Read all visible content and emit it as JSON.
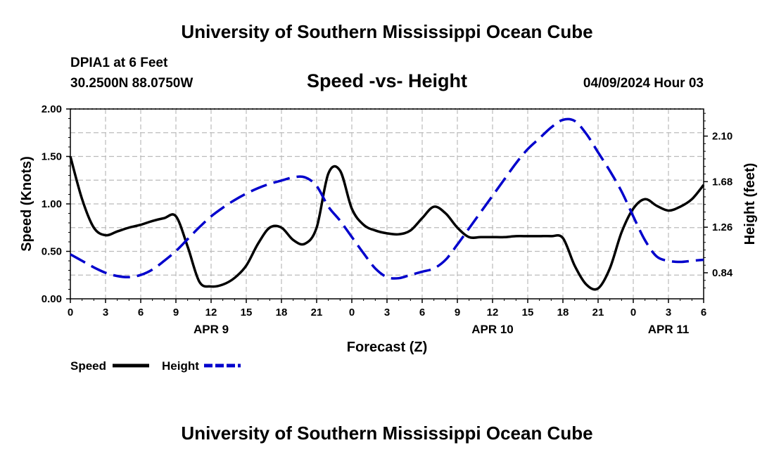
{
  "page": {
    "title_top": "University of Southern Mississippi Ocean Cube",
    "title_bottom": "University of Southern Mississippi Ocean Cube",
    "station": "DPIA1 at 6 Feet",
    "coords": "30.2500N  88.0750W",
    "timestamp": "04/09/2024 Hour 03"
  },
  "chart_data": {
    "type": "line",
    "title": "Speed -vs- Height",
    "xlabel": "Forecast (Z)",
    "ylabel_left": "Speed (Knots)",
    "ylabel_right": "Height (feet)",
    "x_range": [
      0,
      54
    ],
    "y_left_range": [
      0,
      2.0
    ],
    "y_right_range": [
      0.6,
      2.35
    ],
    "x_ticks": [
      0,
      3,
      6,
      9,
      12,
      15,
      18,
      21,
      24,
      27,
      30,
      33,
      36,
      39,
      42,
      45,
      48,
      51,
      54
    ],
    "x_tick_labels": [
      "0",
      "3",
      "6",
      "9",
      "12",
      "15",
      "18",
      "21",
      "0",
      "3",
      "6",
      "9",
      "12",
      "15",
      "18",
      "21",
      "0",
      "3",
      "6"
    ],
    "date_labels": [
      {
        "x": 12,
        "label": "APR 9"
      },
      {
        "x": 36,
        "label": "APR 10"
      },
      {
        "x": 51,
        "label": "APR 11"
      }
    ],
    "y_left_ticks": [
      0,
      0.5,
      1.0,
      1.5,
      2.0
    ],
    "y_left_tick_labels": [
      "0.00",
      "0.50",
      "1.00",
      "1.50",
      "2.00"
    ],
    "y_right_ticks": [
      0.84,
      1.26,
      1.68,
      2.1
    ],
    "y_right_tick_labels": [
      "0.84",
      "1.26",
      "1.68",
      "2.10"
    ],
    "grid": true,
    "legend": [
      {
        "name": "Speed",
        "color": "#000000",
        "dash": "solid"
      },
      {
        "name": "Height",
        "color": "#0000cc",
        "dash": "dashed"
      }
    ],
    "series": [
      {
        "name": "Speed",
        "axis": "left",
        "color": "#000000",
        "dash": "solid",
        "x": [
          0,
          1,
          2,
          3,
          4,
          5,
          6,
          7,
          8,
          9,
          10,
          11,
          12,
          13,
          14,
          15,
          16,
          17,
          18,
          19,
          20,
          21,
          22,
          23,
          24,
          25,
          26,
          27,
          28,
          29,
          30,
          31,
          32,
          33,
          34,
          35,
          36,
          37,
          38,
          39,
          40,
          41,
          42,
          43,
          44,
          45,
          46,
          47,
          48,
          49,
          50,
          51,
          52,
          53,
          54
        ],
        "values": [
          1.5,
          1.05,
          0.75,
          0.67,
          0.71,
          0.75,
          0.78,
          0.82,
          0.85,
          0.87,
          0.55,
          0.18,
          0.13,
          0.15,
          0.22,
          0.35,
          0.58,
          0.75,
          0.75,
          0.62,
          0.58,
          0.75,
          1.32,
          1.35,
          0.95,
          0.78,
          0.72,
          0.69,
          0.68,
          0.72,
          0.85,
          0.97,
          0.9,
          0.75,
          0.65,
          0.65,
          0.65,
          0.65,
          0.66,
          0.66,
          0.66,
          0.66,
          0.64,
          0.35,
          0.15,
          0.11,
          0.32,
          0.7,
          0.95,
          1.05,
          0.98,
          0.93,
          0.97,
          1.05,
          1.2
        ]
      },
      {
        "name": "Height",
        "axis": "right",
        "color": "#0000cc",
        "dash": "dashed",
        "x": [
          0,
          1,
          2,
          3,
          4,
          5,
          6,
          7,
          8,
          9,
          10,
          11,
          12,
          13,
          14,
          15,
          16,
          17,
          18,
          19,
          20,
          21,
          22,
          23,
          24,
          25,
          26,
          27,
          28,
          29,
          30,
          31,
          32,
          33,
          34,
          35,
          36,
          37,
          38,
          39,
          40,
          41,
          42,
          43,
          44,
          45,
          46,
          47,
          48,
          49,
          50,
          51,
          52,
          53,
          54
        ],
        "values": [
          1.01,
          0.95,
          0.89,
          0.84,
          0.81,
          0.8,
          0.82,
          0.87,
          0.95,
          1.04,
          1.15,
          1.26,
          1.36,
          1.44,
          1.51,
          1.57,
          1.62,
          1.66,
          1.69,
          1.72,
          1.72,
          1.64,
          1.45,
          1.32,
          1.17,
          1.02,
          0.88,
          0.8,
          0.79,
          0.82,
          0.85,
          0.88,
          0.96,
          1.1,
          1.25,
          1.4,
          1.55,
          1.7,
          1.85,
          1.98,
          2.08,
          2.18,
          2.25,
          2.24,
          2.12,
          1.95,
          1.78,
          1.59,
          1.36,
          1.14,
          0.99,
          0.95,
          0.94,
          0.95,
          0.96
        ]
      }
    ]
  }
}
